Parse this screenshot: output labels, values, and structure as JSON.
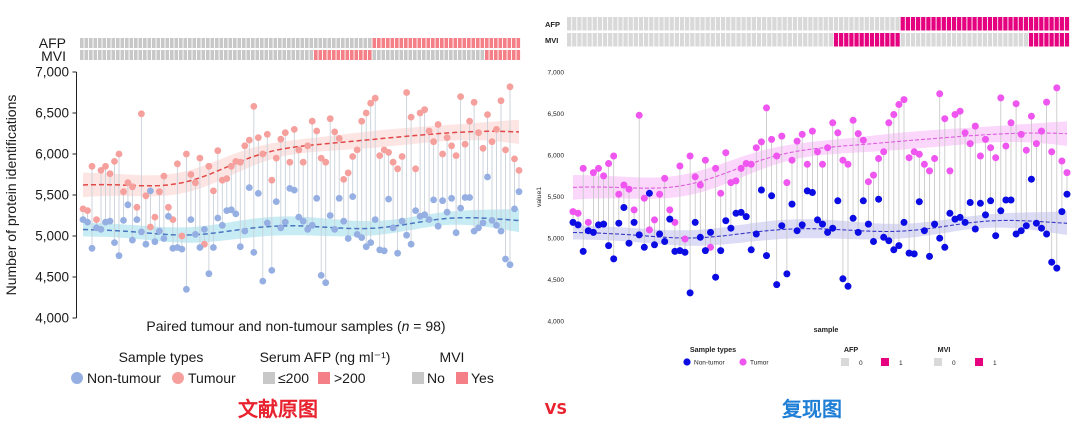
{
  "captions": {
    "original": "文献原图",
    "vs": "VS",
    "reproduction": "复现图",
    "colors": {
      "original": "#e8222e",
      "vs": "#e8222e",
      "reproduction": "#1f7fd6"
    }
  },
  "chart_data": [
    {
      "type": "scatter",
      "title": "",
      "xlabel_parts": [
        "Paired tumour and non-tumour samples (",
        "n",
        " = 98)"
      ],
      "ylabel": "Number of protein identifications",
      "ylim": [
        4000,
        7000
      ],
      "yticks": [
        4000,
        4500,
        5000,
        5500,
        6000,
        6500,
        7000
      ],
      "ytick_labels": [
        "4,000",
        "4,500",
        "5,000",
        "5,500",
        "6,000",
        "6,500",
        "7,000"
      ],
      "series": [
        {
          "name": "Non-tumour",
          "values": [
            5200,
            5170,
            4850,
            5100,
            5080,
            5170,
            5180,
            4920,
            4760,
            5190,
            5380,
            4950,
            5200,
            5050,
            4900,
            5550,
            4930,
            5060,
            4970,
            5240,
            4850,
            4860,
            4840,
            4350,
            5200,
            5020,
            4860,
            5080,
            4540,
            4860,
            5220,
            5130,
            5310,
            5320,
            5270,
            4870,
            5060,
            5590,
            4800,
            5520,
            4450,
            5160,
            4580,
            5420,
            5100,
            5170,
            5580,
            5560,
            5230,
            5180,
            5080,
            5130,
            5460,
            4520,
            4430,
            5250,
            5080,
            5460,
            5180,
            4970,
            5480,
            5020,
            4980,
            4870,
            4920,
            5200,
            4830,
            4820,
            5450,
            5100,
            4790,
            5180,
            5010,
            4900,
            5310,
            5240,
            5260,
            5200,
            5440,
            5120,
            5430,
            5290,
            5460,
            5040,
            5340,
            5470,
            5470,
            5060,
            5100,
            5160,
            5720,
            5190,
            5130,
            5060,
            4720,
            4650,
            5330,
            5540
          ]
        },
        {
          "name": "Tumour",
          "values": [
            5330,
            5310,
            5850,
            5200,
            5800,
            5850,
            5760,
            5910,
            6000,
            5540,
            5650,
            5600,
            5350,
            6490,
            5490,
            5110,
            5230,
            5540,
            5730,
            5350,
            5200,
            5880,
            5000,
            6000,
            5750,
            5650,
            5950,
            4900,
            5850,
            5550,
            6040,
            5680,
            5700,
            5850,
            5910,
            5900,
            6100,
            6170,
            6580,
            6200,
            6000,
            6240,
            5680,
            5950,
            6180,
            6260,
            5900,
            6300,
            6050,
            5900,
            6100,
            6400,
            6280,
            5950,
            5900,
            6430,
            6270,
            6190,
            5690,
            5770,
            5970,
            6050,
            6400,
            6500,
            6620,
            6680,
            5980,
            6050,
            6020,
            5900,
            5820,
            5970,
            6750,
            6450,
            5820,
            6500,
            6540,
            6280,
            6150,
            6360,
            6000,
            6200,
            6100,
            5980,
            6700,
            6120,
            6400,
            6630,
            6260,
            6070,
            6480,
            6150,
            6300,
            6650,
            6050,
            6820,
            5940,
            5800
          ]
        }
      ],
      "annotations": {
        "afp": {
          "label": "AFP",
          "values": [
            0,
            0,
            0,
            0,
            0,
            0,
            0,
            0,
            0,
            0,
            0,
            0,
            0,
            0,
            0,
            0,
            0,
            0,
            0,
            0,
            0,
            0,
            0,
            0,
            0,
            0,
            0,
            0,
            0,
            0,
            0,
            0,
            0,
            0,
            0,
            0,
            0,
            0,
            0,
            0,
            0,
            0,
            0,
            0,
            0,
            0,
            0,
            0,
            0,
            0,
            0,
            0,
            0,
            0,
            0,
            0,
            0,
            0,
            0,
            0,
            0,
            0,
            0,
            0,
            0,
            1,
            1,
            1,
            1,
            1,
            1,
            1,
            1,
            1,
            1,
            1,
            1,
            1,
            1,
            1,
            1,
            1,
            1,
            1,
            1,
            1,
            1,
            1,
            1,
            1,
            1,
            1,
            1,
            1,
            1,
            1,
            1,
            1
          ]
        },
        "mvi": {
          "label": "MVI",
          "values": [
            0,
            0,
            0,
            0,
            0,
            0,
            0,
            0,
            0,
            0,
            0,
            0,
            0,
            0,
            0,
            0,
            0,
            0,
            0,
            0,
            0,
            0,
            0,
            0,
            0,
            0,
            0,
            0,
            0,
            0,
            0,
            0,
            0,
            0,
            0,
            0,
            0,
            0,
            0,
            0,
            0,
            0,
            0,
            0,
            0,
            0,
            0,
            0,
            0,
            0,
            0,
            0,
            1,
            1,
            1,
            1,
            1,
            1,
            1,
            1,
            1,
            1,
            1,
            1,
            1,
            0,
            0,
            0,
            0,
            0,
            0,
            0,
            0,
            0,
            0,
            0,
            0,
            0,
            0,
            0,
            0,
            0,
            0,
            0,
            0,
            0,
            0,
            0,
            0,
            0,
            1,
            1,
            1,
            1,
            1,
            1,
            1,
            1
          ]
        }
      },
      "legend": {
        "sample_title": "Sample types",
        "non_tumour": "Non-tumour",
        "tumour": "Tumour",
        "afp_title": "Serum AFP (ng ml⁻¹)",
        "afp_low": "≤200",
        "afp_high": ">200",
        "mvi_title": "MVI",
        "mvi_no": "No",
        "mvi_yes": "Yes",
        "position": "bottom"
      },
      "colors": {
        "non_tumour_point": "#96afe3",
        "tumour_point": "#f5a09c",
        "non_tumour_band": "#b4e6ef",
        "tumour_band": "#fbdcda",
        "non_tumour_line": "#4a76c2",
        "tumour_line": "#e24848",
        "pair_line": "#c9d0da",
        "strip_no": "#c8c8c8",
        "strip_yes": "#f47f86",
        "text": "#1a1a1a"
      }
    },
    {
      "type": "scatter",
      "title": "",
      "xlabel": "sample",
      "ylabel": "value1",
      "ylim": [
        4000,
        7000
      ],
      "yticks": [
        4000,
        4500,
        5000,
        5500,
        6000,
        6500,
        7000
      ],
      "ytick_labels": [
        "4,000",
        "4,500",
        "5,000",
        "5,500",
        "6,000",
        "6,500",
        "7,000"
      ],
      "series": [
        {
          "name": "Non-tumor",
          "values": [
            5200,
            5170,
            4850,
            5100,
            5080,
            5170,
            5180,
            4920,
            4760,
            5190,
            5380,
            4950,
            5200,
            5050,
            4900,
            5550,
            4930,
            5060,
            4970,
            5240,
            4850,
            4860,
            4840,
            4350,
            5200,
            5020,
            4860,
            5080,
            4540,
            4860,
            5220,
            5130,
            5310,
            5320,
            5270,
            4870,
            5060,
            5590,
            4800,
            5520,
            4450,
            5160,
            4580,
            5420,
            5100,
            5170,
            5580,
            5560,
            5230,
            5180,
            5080,
            5130,
            5460,
            4520,
            4430,
            5250,
            5080,
            5460,
            5180,
            4970,
            5480,
            5020,
            4980,
            4870,
            4920,
            5200,
            4830,
            4820,
            5450,
            5100,
            4790,
            5180,
            5010,
            4900,
            5310,
            5240,
            5260,
            5200,
            5440,
            5120,
            5430,
            5290,
            5460,
            5040,
            5340,
            5470,
            5470,
            5060,
            5100,
            5160,
            5720,
            5190,
            5130,
            5060,
            4720,
            4650,
            5330,
            5540
          ]
        },
        {
          "name": "Tumor",
          "values": [
            5330,
            5310,
            5850,
            5200,
            5800,
            5850,
            5760,
            5910,
            6000,
            5540,
            5650,
            5600,
            5350,
            6490,
            5490,
            5110,
            5230,
            5540,
            5730,
            5350,
            5200,
            5880,
            5000,
            6000,
            5750,
            5650,
            5950,
            4900,
            5850,
            5550,
            6040,
            5680,
            5700,
            5850,
            5910,
            5900,
            6100,
            6170,
            6580,
            6200,
            6000,
            6240,
            5680,
            5950,
            6180,
            6260,
            5900,
            6300,
            6050,
            5900,
            6100,
            6400,
            6280,
            5950,
            5900,
            6430,
            6270,
            6190,
            5690,
            5770,
            5970,
            6050,
            6400,
            6500,
            6620,
            6680,
            5980,
            6050,
            6020,
            5900,
            5820,
            5970,
            6750,
            6450,
            5820,
            6500,
            6540,
            6280,
            6150,
            6360,
            6000,
            6200,
            6100,
            5980,
            6700,
            6120,
            6400,
            6630,
            6260,
            6070,
            6480,
            6150,
            6300,
            6650,
            6050,
            6820,
            5940,
            5800
          ]
        }
      ],
      "annotations": {
        "afp": {
          "label": "AFP",
          "values": [
            0,
            0,
            0,
            0,
            0,
            0,
            0,
            0,
            0,
            0,
            0,
            0,
            0,
            0,
            0,
            0,
            0,
            0,
            0,
            0,
            0,
            0,
            0,
            0,
            0,
            0,
            0,
            0,
            0,
            0,
            0,
            0,
            0,
            0,
            0,
            0,
            0,
            0,
            0,
            0,
            0,
            0,
            0,
            0,
            0,
            0,
            0,
            0,
            0,
            0,
            0,
            0,
            0,
            0,
            0,
            0,
            0,
            0,
            0,
            0,
            0,
            0,
            0,
            0,
            0,
            1,
            1,
            1,
            1,
            1,
            1,
            1,
            1,
            1,
            1,
            1,
            1,
            1,
            1,
            1,
            1,
            1,
            1,
            1,
            1,
            1,
            1,
            1,
            1,
            1,
            1,
            1,
            1,
            1,
            1,
            1,
            1,
            1
          ]
        },
        "mvi": {
          "label": "MVI",
          "values": [
            0,
            0,
            0,
            0,
            0,
            0,
            0,
            0,
            0,
            0,
            0,
            0,
            0,
            0,
            0,
            0,
            0,
            0,
            0,
            0,
            0,
            0,
            0,
            0,
            0,
            0,
            0,
            0,
            0,
            0,
            0,
            0,
            0,
            0,
            0,
            0,
            0,
            0,
            0,
            0,
            0,
            0,
            0,
            0,
            0,
            0,
            0,
            0,
            0,
            0,
            0,
            0,
            1,
            1,
            1,
            1,
            1,
            1,
            1,
            1,
            1,
            1,
            1,
            1,
            1,
            0,
            0,
            0,
            0,
            0,
            0,
            0,
            0,
            0,
            0,
            0,
            0,
            0,
            0,
            0,
            0,
            0,
            0,
            0,
            0,
            0,
            0,
            0,
            0,
            0,
            1,
            1,
            1,
            1,
            1,
            1,
            1,
            1
          ]
        }
      },
      "legend": {
        "sample_title": "Sample types",
        "non_tumour": "Non-tumor",
        "tumour": "Tumor",
        "afp_title": "AFP",
        "afp_low": "0",
        "afp_high": "1",
        "mvi_title": "MVI",
        "mvi_no": "0",
        "mvi_yes": "1",
        "position": "bottom"
      },
      "colors": {
        "non_tumour_point": "#0b0be3",
        "tumour_point": "#ef55ef",
        "non_tumour_band": "#d6d6f6",
        "tumour_band": "#fbd0fb",
        "non_tumour_line": "#3838c6",
        "tumour_line": "#de5cde",
        "pair_line": "#c4c4c4",
        "strip_no": "#d9d9d9",
        "strip_yes": "#e5007f",
        "text": "#222222"
      }
    }
  ]
}
